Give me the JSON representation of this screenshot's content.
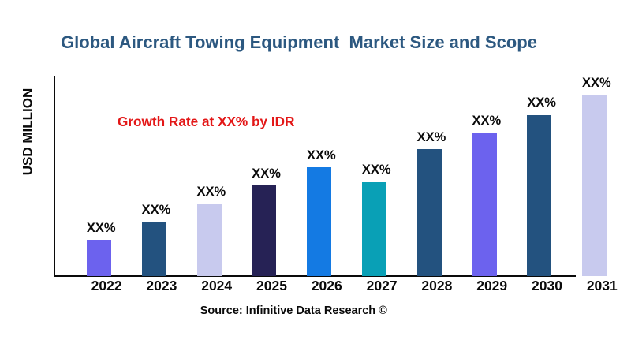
{
  "title": {
    "text": "Global Aircraft Towing Equipment  Market Size and Scope",
    "color": "#2C5880"
  },
  "annotation": {
    "text": "Growth Rate at XX% by IDR",
    "color": "#E31717"
  },
  "y_axis": {
    "label": "USD MILLION"
  },
  "source": {
    "text": "Source: Infinitive Data Research ©"
  },
  "chart_data": {
    "type": "bar",
    "title": "Global Aircraft Towing Equipment  Market Size and Scope",
    "xlabel": "",
    "ylabel": "USD MILLION",
    "categories": [
      "2022",
      "2023",
      "2024",
      "2025",
      "2026",
      "2027",
      "2028",
      "2029",
      "2030",
      "2031"
    ],
    "values": [
      2,
      3,
      4,
      5,
      6,
      5.2,
      7,
      7.9,
      8.9,
      10
    ],
    "value_labels": [
      "XX%",
      "XX%",
      "XX%",
      "XX%",
      "XX%",
      "XX%",
      "XX%",
      "XX%",
      "XX%",
      "XX%"
    ],
    "bar_colors": [
      "#6C62EE",
      "#23527F",
      "#C8CAEE",
      "#262255",
      "#147AE3",
      "#09A0B6",
      "#23527F",
      "#6C62EE",
      "#23527F",
      "#C8CAEE"
    ],
    "ylim": [
      0,
      11.05
    ],
    "grid": false,
    "legend": false,
    "annotation": "Growth Rate at XX% by IDR"
  }
}
